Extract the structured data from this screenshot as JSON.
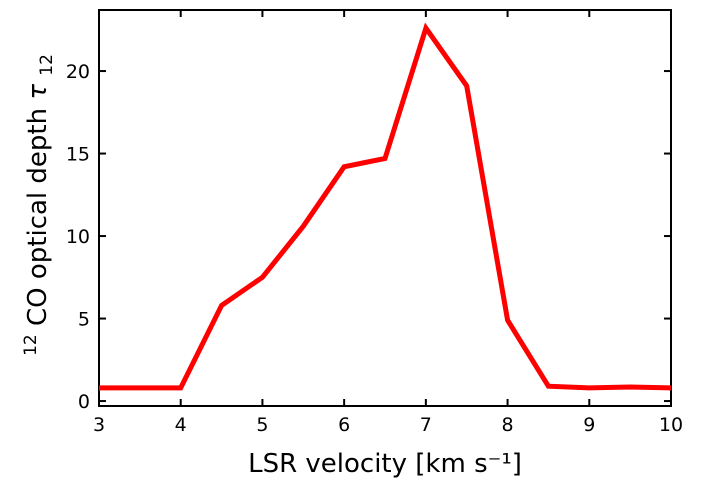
{
  "chart_data": {
    "type": "line",
    "xlabel": "LSR velocity [km s⁻¹]",
    "ylabel": {
      "prefix_sup": "12",
      "text": "CO optical depth ",
      "symbol": "τ",
      "symbol_sub": "12"
    },
    "xlim": [
      3,
      10
    ],
    "ylim": [
      -0.3,
      23.7
    ],
    "xticks": [
      "3",
      "4",
      "5",
      "6",
      "7",
      "8",
      "9",
      "10"
    ],
    "yticks": [
      "0",
      "5",
      "10",
      "15",
      "20"
    ],
    "grid": false,
    "series": [
      {
        "color": "#ff0000",
        "x": [
          3.0,
          4.0,
          4.5,
          5.0,
          5.5,
          6.0,
          6.5,
          7.0,
          7.5,
          8.0,
          8.5,
          9.0,
          9.5,
          10.0
        ],
        "y": [
          0.8,
          0.8,
          5.8,
          7.5,
          10.6,
          14.2,
          14.7,
          22.6,
          19.1,
          4.9,
          0.9,
          0.8,
          0.85,
          0.8
        ]
      }
    ]
  }
}
